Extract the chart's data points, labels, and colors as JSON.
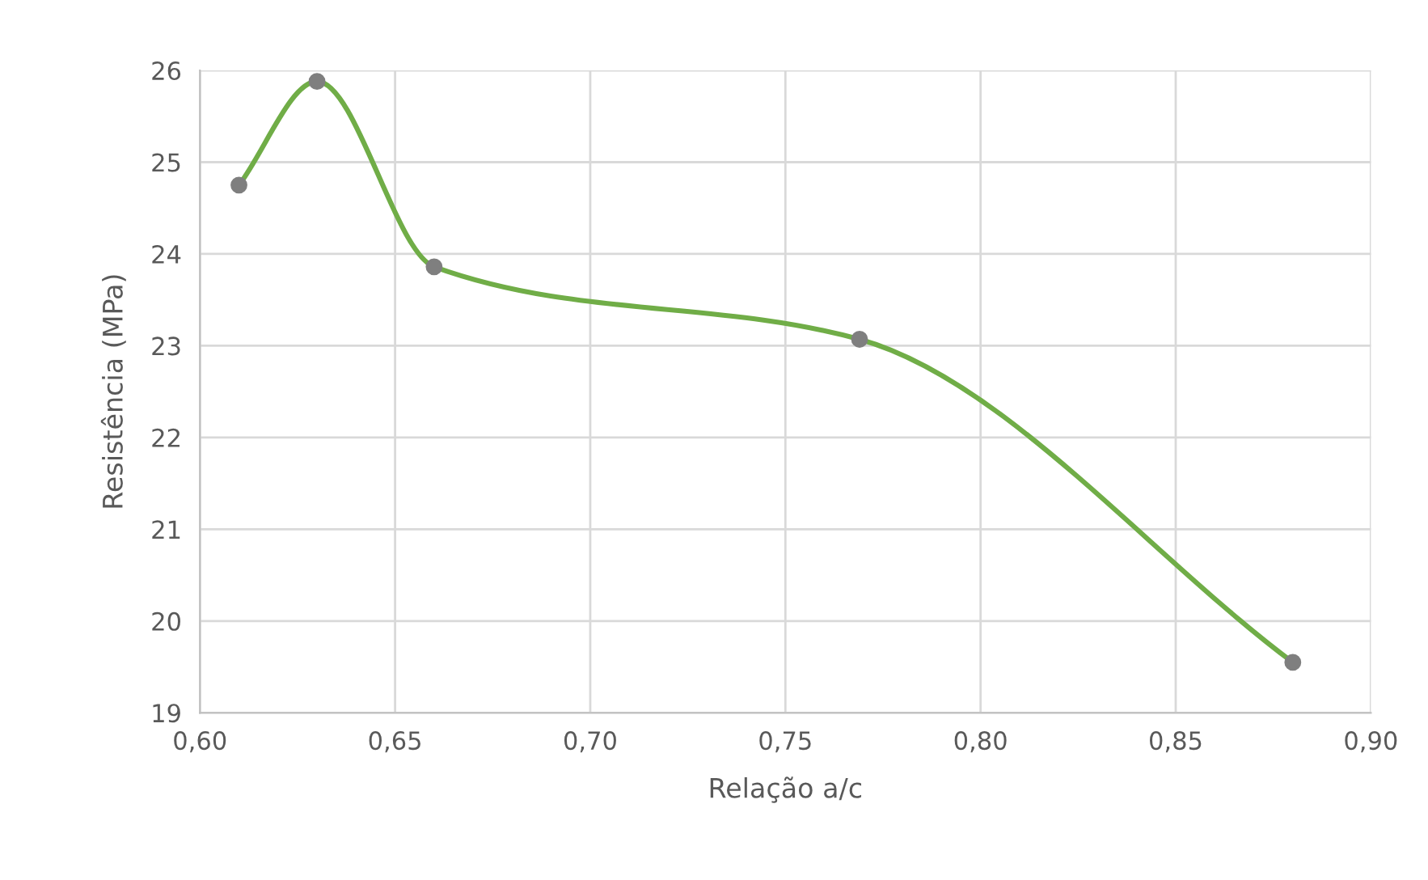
{
  "chart_data": {
    "type": "line",
    "xlabel": "Relação a/c",
    "ylabel": "Resistência (MPa)",
    "x": [
      0.61,
      0.63,
      0.66,
      0.769,
      0.88
    ],
    "series": [
      {
        "color": "#70ad47",
        "values": [
          24.75,
          25.88,
          23.86,
          23.07,
          19.55
        ]
      }
    ],
    "xlim": [
      0.6,
      0.9
    ],
    "ylim": [
      19,
      26
    ],
    "xticks": [
      {
        "value": 0.6,
        "label": "0,60"
      },
      {
        "value": 0.65,
        "label": "0,65"
      },
      {
        "value": 0.7,
        "label": "0,70"
      },
      {
        "value": 0.75,
        "label": "0,75"
      },
      {
        "value": 0.8,
        "label": "0,80"
      },
      {
        "value": 0.85,
        "label": "0,85"
      },
      {
        "value": 0.9,
        "label": "0,90"
      }
    ],
    "yticks": [
      19,
      20,
      21,
      22,
      23,
      24,
      25,
      26
    ],
    "grid": true,
    "marker": "circle",
    "line_style": "solid"
  }
}
